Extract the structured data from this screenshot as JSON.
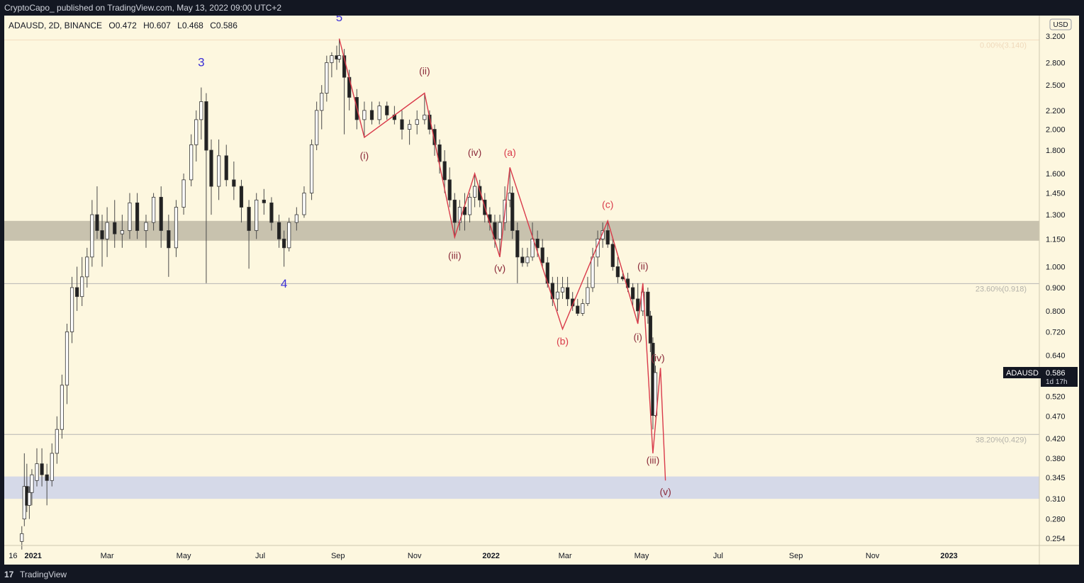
{
  "header": {
    "published_text": "CryptoCapo_  published on TradingView.com, May 13, 2022 09:00 UTC+2"
  },
  "symbol_info": {
    "symbol": "ADAUSD, 2D, BINANCE",
    "open": "O0.472",
    "high": "H0.607",
    "low": "L0.468",
    "close": "C0.586"
  },
  "currency_badge": "USD",
  "price_tag": {
    "symbol": "ADAUSD",
    "price": "0.586",
    "countdown": "1d 17h"
  },
  "footer": {
    "logo": "17",
    "brand": "TradingView"
  },
  "colors": {
    "background": "#fdf7df",
    "resistance_zone": "#c8c2ae",
    "support_zone": "#d5d9e8",
    "main_wave_label": "#3b2fd6",
    "sub_wave_label": "#8b2a3a",
    "correction_label": "#d93a4a",
    "wave_line": "#d93a4a",
    "candles": "#222222"
  },
  "chart_data": {
    "type": "candlestick",
    "symbol": "ADAUSD",
    "timeframe": "2D",
    "exchange": "BINANCE",
    "y_scale": "log",
    "ylim": [
      0.245,
      3.55
    ],
    "x_ticks": [
      "16",
      "2021",
      "Mar",
      "May",
      "Jul",
      "Sep",
      "Nov",
      "2022",
      "Mar",
      "May",
      "Jul",
      "Sep",
      "Nov",
      "2023"
    ],
    "y_ticks": [
      "3.200",
      "2.800",
      "2.500",
      "2.200",
      "2.000",
      "1.800",
      "1.600",
      "1.450",
      "1.300",
      "1.150",
      "1.000",
      "0.900",
      "0.800",
      "0.720",
      "0.640",
      "0.520",
      "0.470",
      "0.420",
      "0.380",
      "0.345",
      "0.310",
      "0.280",
      "0.254"
    ],
    "fib_levels": [
      {
        "label": "0.00%(3.140)",
        "price": 3.14
      },
      {
        "label": "23.60%(0.918)",
        "price": 0.918
      },
      {
        "label": "38.20%(0.429)",
        "price": 0.429
      }
    ],
    "zones": [
      {
        "name": "resistance",
        "from": 1.14,
        "to": 1.26
      },
      {
        "name": "support",
        "from": 0.31,
        "to": 0.347
      }
    ],
    "last_price": 0.586,
    "candles": [
      {
        "date": "2020-12-23",
        "o": 0.25,
        "h": 0.27,
        "l": 0.24,
        "c": 0.26
      },
      {
        "date": "2020-12-25",
        "o": 0.28,
        "h": 0.39,
        "l": 0.27,
        "c": 0.33
      },
      {
        "date": "2020-12-27",
        "o": 0.33,
        "h": 0.37,
        "l": 0.29,
        "c": 0.3
      },
      {
        "date": "2020-12-29",
        "o": 0.3,
        "h": 0.33,
        "l": 0.28,
        "c": 0.32
      },
      {
        "date": "2020-12-31",
        "o": 0.32,
        "h": 0.36,
        "l": 0.3,
        "c": 0.35
      },
      {
        "date": "2021-01-04",
        "o": 0.34,
        "h": 0.4,
        "l": 0.33,
        "c": 0.37
      },
      {
        "date": "2021-01-08",
        "o": 0.37,
        "h": 0.4,
        "l": 0.33,
        "c": 0.35
      },
      {
        "date": "2021-01-12",
        "o": 0.35,
        "h": 0.37,
        "l": 0.3,
        "c": 0.34
      },
      {
        "date": "2021-01-16",
        "o": 0.34,
        "h": 0.41,
        "l": 0.33,
        "c": 0.39
      },
      {
        "date": "2021-01-20",
        "o": 0.39,
        "h": 0.47,
        "l": 0.37,
        "c": 0.44
      },
      {
        "date": "2021-01-24",
        "o": 0.44,
        "h": 0.58,
        "l": 0.42,
        "c": 0.55
      },
      {
        "date": "2021-01-28",
        "o": 0.55,
        "h": 0.75,
        "l": 0.5,
        "c": 0.72
      },
      {
        "date": "2021-02-01",
        "o": 0.72,
        "h": 0.95,
        "l": 0.68,
        "c": 0.9
      },
      {
        "date": "2021-02-05",
        "o": 0.9,
        "h": 1.0,
        "l": 0.8,
        "c": 0.86
      },
      {
        "date": "2021-02-09",
        "o": 0.86,
        "h": 1.05,
        "l": 0.82,
        "c": 0.95
      },
      {
        "date": "2021-02-13",
        "o": 0.95,
        "h": 1.1,
        "l": 0.9,
        "c": 1.05
      },
      {
        "date": "2021-02-17",
        "o": 1.05,
        "h": 1.4,
        "l": 1.0,
        "c": 1.3
      },
      {
        "date": "2021-02-21",
        "o": 1.3,
        "h": 1.5,
        "l": 1.15,
        "c": 1.2
      },
      {
        "date": "2021-02-25",
        "o": 1.2,
        "h": 1.3,
        "l": 1.0,
        "c": 1.15
      },
      {
        "date": "2021-03-01",
        "o": 1.15,
        "h": 1.35,
        "l": 1.05,
        "c": 1.25
      },
      {
        "date": "2021-03-07",
        "o": 1.25,
        "h": 1.4,
        "l": 1.1,
        "c": 1.18
      },
      {
        "date": "2021-03-13",
        "o": 1.18,
        "h": 1.3,
        "l": 1.1,
        "c": 1.2
      },
      {
        "date": "2021-03-19",
        "o": 1.2,
        "h": 1.45,
        "l": 1.15,
        "c": 1.38
      },
      {
        "date": "2021-03-25",
        "o": 1.38,
        "h": 1.45,
        "l": 1.15,
        "c": 1.2
      },
      {
        "date": "2021-04-01",
        "o": 1.2,
        "h": 1.3,
        "l": 1.1,
        "c": 1.25
      },
      {
        "date": "2021-04-07",
        "o": 1.25,
        "h": 1.45,
        "l": 1.2,
        "c": 1.42
      },
      {
        "date": "2021-04-13",
        "o": 1.42,
        "h": 1.5,
        "l": 1.1,
        "c": 1.2
      },
      {
        "date": "2021-04-19",
        "o": 1.2,
        "h": 1.3,
        "l": 0.95,
        "c": 1.1
      },
      {
        "date": "2021-04-25",
        "o": 1.1,
        "h": 1.4,
        "l": 1.05,
        "c": 1.35
      },
      {
        "date": "2021-05-01",
        "o": 1.35,
        "h": 1.6,
        "l": 1.3,
        "c": 1.55
      },
      {
        "date": "2021-05-07",
        "o": 1.55,
        "h": 1.95,
        "l": 1.5,
        "c": 1.85
      },
      {
        "date": "2021-05-11",
        "o": 1.85,
        "h": 2.2,
        "l": 1.7,
        "c": 2.1
      },
      {
        "date": "2021-05-15",
        "o": 2.1,
        "h": 2.47,
        "l": 1.9,
        "c": 2.3
      },
      {
        "date": "2021-05-19",
        "o": 2.3,
        "h": 2.4,
        "l": 0.92,
        "c": 1.8
      },
      {
        "date": "2021-05-23",
        "o": 1.8,
        "h": 1.9,
        "l": 1.3,
        "c": 1.5
      },
      {
        "date": "2021-05-29",
        "o": 1.5,
        "h": 1.9,
        "l": 1.4,
        "c": 1.75
      },
      {
        "date": "2021-06-04",
        "o": 1.75,
        "h": 1.85,
        "l": 1.5,
        "c": 1.55
      },
      {
        "date": "2021-06-10",
        "o": 1.55,
        "h": 1.7,
        "l": 1.4,
        "c": 1.5
      },
      {
        "date": "2021-06-16",
        "o": 1.5,
        "h": 1.55,
        "l": 1.25,
        "c": 1.35
      },
      {
        "date": "2021-06-22",
        "o": 1.35,
        "h": 1.4,
        "l": 0.99,
        "c": 1.2
      },
      {
        "date": "2021-06-28",
        "o": 1.2,
        "h": 1.45,
        "l": 1.15,
        "c": 1.4
      },
      {
        "date": "2021-07-04",
        "o": 1.4,
        "h": 1.48,
        "l": 1.3,
        "c": 1.38
      },
      {
        "date": "2021-07-10",
        "o": 1.38,
        "h": 1.42,
        "l": 1.2,
        "c": 1.25
      },
      {
        "date": "2021-07-16",
        "o": 1.25,
        "h": 1.3,
        "l": 1.1,
        "c": 1.15
      },
      {
        "date": "2021-07-20",
        "o": 1.15,
        "h": 1.2,
        "l": 1.0,
        "c": 1.1
      },
      {
        "date": "2021-07-24",
        "o": 1.1,
        "h": 1.28,
        "l": 1.08,
        "c": 1.25
      },
      {
        "date": "2021-07-30",
        "o": 1.25,
        "h": 1.35,
        "l": 1.2,
        "c": 1.3
      },
      {
        "date": "2021-08-05",
        "o": 1.3,
        "h": 1.5,
        "l": 1.28,
        "c": 1.45
      },
      {
        "date": "2021-08-11",
        "o": 1.45,
        "h": 1.9,
        "l": 1.4,
        "c": 1.85
      },
      {
        "date": "2021-08-15",
        "o": 1.85,
        "h": 2.3,
        "l": 1.8,
        "c": 2.2
      },
      {
        "date": "2021-08-19",
        "o": 2.2,
        "h": 2.5,
        "l": 2.0,
        "c": 2.4
      },
      {
        "date": "2021-08-23",
        "o": 2.4,
        "h": 2.9,
        "l": 2.3,
        "c": 2.8
      },
      {
        "date": "2021-08-27",
        "o": 2.8,
        "h": 2.95,
        "l": 2.6,
        "c": 2.9
      },
      {
        "date": "2021-08-31",
        "o": 2.9,
        "h": 3.05,
        "l": 2.7,
        "c": 2.85
      },
      {
        "date": "2021-09-02",
        "o": 2.85,
        "h": 3.16,
        "l": 2.8,
        "c": 2.9
      },
      {
        "date": "2021-09-06",
        "o": 2.9,
        "h": 3.0,
        "l": 1.95,
        "c": 2.6
      },
      {
        "date": "2021-09-10",
        "o": 2.6,
        "h": 2.7,
        "l": 2.2,
        "c": 2.35
      },
      {
        "date": "2021-09-16",
        "o": 2.35,
        "h": 2.45,
        "l": 2.0,
        "c": 2.1
      },
      {
        "date": "2021-09-22",
        "o": 2.1,
        "h": 2.3,
        "l": 1.92,
        "c": 2.2
      },
      {
        "date": "2021-09-28",
        "o": 2.2,
        "h": 2.3,
        "l": 2.05,
        "c": 2.1
      },
      {
        "date": "2021-10-04",
        "o": 2.1,
        "h": 2.3,
        "l": 2.05,
        "c": 2.25
      },
      {
        "date": "2021-10-10",
        "o": 2.25,
        "h": 2.3,
        "l": 2.1,
        "c": 2.15
      },
      {
        "date": "2021-10-16",
        "o": 2.15,
        "h": 2.25,
        "l": 2.05,
        "c": 2.1
      },
      {
        "date": "2021-10-22",
        "o": 2.1,
        "h": 2.2,
        "l": 1.9,
        "c": 2.0
      },
      {
        "date": "2021-10-28",
        "o": 2.0,
        "h": 2.1,
        "l": 1.85,
        "c": 2.05
      },
      {
        "date": "2021-11-03",
        "o": 2.05,
        "h": 2.2,
        "l": 1.95,
        "c": 2.1
      },
      {
        "date": "2021-11-09",
        "o": 2.1,
        "h": 2.4,
        "l": 2.05,
        "c": 2.15
      },
      {
        "date": "2021-11-13",
        "o": 2.15,
        "h": 2.2,
        "l": 1.95,
        "c": 2.0
      },
      {
        "date": "2021-11-17",
        "o": 2.0,
        "h": 2.05,
        "l": 1.75,
        "c": 1.85
      },
      {
        "date": "2021-11-21",
        "o": 1.85,
        "h": 1.9,
        "l": 1.6,
        "c": 1.7
      },
      {
        "date": "2021-11-25",
        "o": 1.7,
        "h": 1.8,
        "l": 1.45,
        "c": 1.55
      },
      {
        "date": "2021-11-29",
        "o": 1.55,
        "h": 1.65,
        "l": 1.35,
        "c": 1.4
      },
      {
        "date": "2021-12-03",
        "o": 1.4,
        "h": 1.45,
        "l": 1.16,
        "c": 1.25
      },
      {
        "date": "2021-12-07",
        "o": 1.25,
        "h": 1.4,
        "l": 1.2,
        "c": 1.35
      },
      {
        "date": "2021-12-11",
        "o": 1.35,
        "h": 1.45,
        "l": 1.2,
        "c": 1.3
      },
      {
        "date": "2021-12-15",
        "o": 1.3,
        "h": 1.45,
        "l": 1.25,
        "c": 1.42
      },
      {
        "date": "2021-12-19",
        "o": 1.42,
        "h": 1.6,
        "l": 1.35,
        "c": 1.5
      },
      {
        "date": "2021-12-23",
        "o": 1.5,
        "h": 1.55,
        "l": 1.35,
        "c": 1.4
      },
      {
        "date": "2021-12-27",
        "o": 1.4,
        "h": 1.45,
        "l": 1.25,
        "c": 1.3
      },
      {
        "date": "2021-12-31",
        "o": 1.3,
        "h": 1.35,
        "l": 1.2,
        "c": 1.25
      },
      {
        "date": "2022-01-04",
        "o": 1.25,
        "h": 1.3,
        "l": 1.1,
        "c": 1.15
      },
      {
        "date": "2022-01-08",
        "o": 1.15,
        "h": 1.3,
        "l": 1.05,
        "c": 1.25
      },
      {
        "date": "2022-01-12",
        "o": 1.25,
        "h": 1.5,
        "l": 1.2,
        "c": 1.4
      },
      {
        "date": "2022-01-16",
        "o": 1.4,
        "h": 1.65,
        "l": 1.35,
        "c": 1.45
      },
      {
        "date": "2022-01-18",
        "o": 1.45,
        "h": 1.5,
        "l": 1.15,
        "c": 1.2
      },
      {
        "date": "2022-01-22",
        "o": 1.2,
        "h": 1.25,
        "l": 0.92,
        "c": 1.05
      },
      {
        "date": "2022-01-26",
        "o": 1.05,
        "h": 1.1,
        "l": 1.0,
        "c": 1.02
      },
      {
        "date": "2022-01-30",
        "o": 1.02,
        "h": 1.1,
        "l": 1.0,
        "c": 1.05
      },
      {
        "date": "2022-02-03",
        "o": 1.05,
        "h": 1.25,
        "l": 1.03,
        "c": 1.15
      },
      {
        "date": "2022-02-07",
        "o": 1.15,
        "h": 1.2,
        "l": 1.05,
        "c": 1.1
      },
      {
        "date": "2022-02-11",
        "o": 1.1,
        "h": 1.15,
        "l": 1.0,
        "c": 1.02
      },
      {
        "date": "2022-02-15",
        "o": 1.02,
        "h": 1.05,
        "l": 0.9,
        "c": 0.92
      },
      {
        "date": "2022-02-19",
        "o": 0.92,
        "h": 0.95,
        "l": 0.82,
        "c": 0.85
      },
      {
        "date": "2022-02-23",
        "o": 0.85,
        "h": 0.95,
        "l": 0.8,
        "c": 0.88
      },
      {
        "date": "2022-02-27",
        "o": 0.88,
        "h": 0.95,
        "l": 0.85,
        "c": 0.9
      },
      {
        "date": "2022-03-03",
        "o": 0.9,
        "h": 0.95,
        "l": 0.82,
        "c": 0.85
      },
      {
        "date": "2022-03-07",
        "o": 0.85,
        "h": 0.88,
        "l": 0.8,
        "c": 0.82
      },
      {
        "date": "2022-03-11",
        "o": 0.82,
        "h": 0.85,
        "l": 0.78,
        "c": 0.79
      },
      {
        "date": "2022-03-15",
        "o": 0.79,
        "h": 0.85,
        "l": 0.78,
        "c": 0.83
      },
      {
        "date": "2022-03-19",
        "o": 0.83,
        "h": 0.95,
        "l": 0.82,
        "c": 0.9
      },
      {
        "date": "2022-03-23",
        "o": 0.9,
        "h": 1.1,
        "l": 0.88,
        "c": 1.05
      },
      {
        "date": "2022-03-27",
        "o": 1.05,
        "h": 1.2,
        "l": 1.0,
        "c": 1.15
      },
      {
        "date": "2022-03-31",
        "o": 1.15,
        "h": 1.25,
        "l": 1.1,
        "c": 1.2
      },
      {
        "date": "2022-04-04",
        "o": 1.2,
        "h": 1.25,
        "l": 1.1,
        "c": 1.12
      },
      {
        "date": "2022-04-08",
        "o": 1.12,
        "h": 1.15,
        "l": 0.98,
        "c": 1.0
      },
      {
        "date": "2022-04-12",
        "o": 1.0,
        "h": 1.05,
        "l": 0.92,
        "c": 0.95
      },
      {
        "date": "2022-04-16",
        "o": 0.95,
        "h": 0.98,
        "l": 0.93,
        "c": 0.94
      },
      {
        "date": "2022-04-20",
        "o": 0.94,
        "h": 0.97,
        "l": 0.88,
        "c": 0.9
      },
      {
        "date": "2022-04-24",
        "o": 0.9,
        "h": 0.92,
        "l": 0.82,
        "c": 0.85
      },
      {
        "date": "2022-04-28",
        "o": 0.85,
        "h": 0.92,
        "l": 0.75,
        "c": 0.8
      },
      {
        "date": "2022-05-02",
        "o": 0.8,
        "h": 0.92,
        "l": 0.78,
        "c": 0.88
      },
      {
        "date": "2022-05-06",
        "o": 0.88,
        "h": 0.9,
        "l": 0.75,
        "c": 0.78
      },
      {
        "date": "2022-05-08",
        "o": 0.78,
        "h": 0.8,
        "l": 0.65,
        "c": 0.68
      },
      {
        "date": "2022-05-10",
        "o": 0.68,
        "h": 0.7,
        "l": 0.44,
        "c": 0.472
      },
      {
        "date": "2022-05-12",
        "o": 0.472,
        "h": 0.607,
        "l": 0.468,
        "c": 0.586
      }
    ],
    "wave_labels": [
      {
        "text": "3",
        "date": "2021-05-15",
        "price": 2.75,
        "style": "main"
      },
      {
        "text": "4",
        "date": "2021-07-20",
        "price": 0.9,
        "style": "main"
      },
      {
        "text": "5",
        "date": "2021-09-02",
        "price": 3.45,
        "style": "main"
      },
      {
        "text": "(i)",
        "date": "2021-09-22",
        "price": 1.72,
        "style": "sub"
      },
      {
        "text": "(ii)",
        "date": "2021-11-09",
        "price": 2.64,
        "style": "sub"
      },
      {
        "text": "(iii)",
        "date": "2021-12-03",
        "price": 1.04,
        "style": "sub"
      },
      {
        "text": "(iv)",
        "date": "2021-12-19",
        "price": 1.75,
        "style": "sub"
      },
      {
        "text": "(v)",
        "date": "2022-01-08",
        "price": 0.975,
        "style": "sub"
      },
      {
        "text": "(a)",
        "date": "2022-01-16",
        "price": 1.75,
        "style": "correction"
      },
      {
        "text": "(b)",
        "date": "2022-02-27",
        "price": 0.675,
        "style": "correction"
      },
      {
        "text": "(c)",
        "date": "2022-04-04",
        "price": 1.345,
        "style": "correction"
      },
      {
        "text": "(ii)",
        "date": "2022-05-02",
        "price": 0.985,
        "style": "sub"
      },
      {
        "text": "(i)",
        "date": "2022-04-28",
        "price": 0.69,
        "style": "sub"
      },
      {
        "text": "(iv)",
        "date": "2022-05-14",
        "price": 0.62,
        "style": "sub"
      },
      {
        "text": "(iii)",
        "date": "2022-05-10",
        "price": 0.37,
        "style": "sub"
      },
      {
        "text": "(v)",
        "date": "2022-05-20",
        "price": 0.316,
        "style": "sub"
      }
    ],
    "wave_path_1": [
      {
        "date": "2021-09-02",
        "price": 3.16
      },
      {
        "date": "2021-09-22",
        "price": 1.92
      },
      {
        "date": "2021-11-09",
        "price": 2.4
      },
      {
        "date": "2021-12-03",
        "price": 1.16
      },
      {
        "date": "2021-12-19",
        "price": 1.6
      },
      {
        "date": "2022-01-08",
        "price": 1.05
      },
      {
        "date": "2022-01-16",
        "price": 1.65
      },
      {
        "date": "2022-02-27",
        "price": 0.73
      },
      {
        "date": "2022-04-04",
        "price": 1.26
      },
      {
        "date": "2022-04-28",
        "price": 0.75
      },
      {
        "date": "2022-05-02",
        "price": 0.92
      },
      {
        "date": "2022-05-10",
        "price": 0.39
      },
      {
        "date": "2022-05-16",
        "price": 0.6
      },
      {
        "date": "2022-05-20",
        "price": 0.34
      }
    ]
  }
}
